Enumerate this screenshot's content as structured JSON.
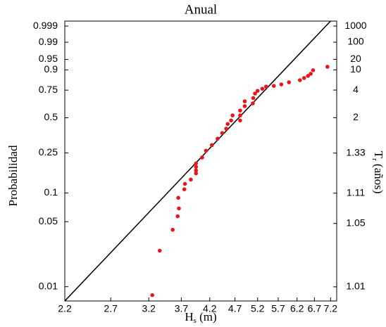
{
  "chart_data": {
    "type": "scatter",
    "title": "Anual",
    "xlabel": {
      "main": "H",
      "sub": "s",
      "rest": " (m)"
    },
    "ylabel": "Probabilidad",
    "y2label": {
      "main": "T",
      "sub": "r",
      "rest": " (años)"
    },
    "xscale": "log",
    "yscale": "weibull",
    "y2scale": "return-period",
    "xlim": [
      2.2,
      7.4
    ],
    "ylim": [
      0.007,
      0.9996
    ],
    "y2lim": [
      1.007,
      2500
    ],
    "xticks": [
      2.2,
      2.7,
      3.2,
      3.7,
      4.2,
      4.7,
      5.2,
      5.7,
      6.2,
      6.7,
      7.2
    ],
    "yticks": [
      0.01,
      0.05,
      0.1,
      0.25,
      0.5,
      0.75,
      0.9,
      0.95,
      0.99,
      0.999
    ],
    "y2ticks": [
      1.01,
      1.05,
      1.11,
      1.33,
      2,
      4,
      10,
      20,
      100,
      1000
    ],
    "grid": false,
    "series": [
      {
        "color": "#000000",
        "mode": "line",
        "x": [
          2.2,
          7.2
        ],
        "values": [
          0.007,
          0.9996
        ]
      },
      {
        "color": "#e8161b",
        "mode": "markers",
        "x": [
          3.25,
          3.36,
          3.56,
          3.64,
          3.66,
          3.65,
          3.75,
          3.76,
          3.86,
          3.95,
          3.95,
          3.95,
          3.95,
          4.06,
          4.13,
          4.24,
          4.35,
          4.44,
          4.52,
          4.55,
          4.62,
          4.65,
          4.81,
          4.81,
          4.81,
          4.91,
          4.91,
          5.09,
          5.1,
          5.14,
          5.2,
          5.31,
          5.4,
          5.59,
          5.78,
          5.98,
          6.28,
          6.4,
          6.51,
          6.59,
          6.66,
          7.1
        ],
        "values": [
          0.0081,
          0.0245,
          0.041,
          0.057,
          0.069,
          0.089,
          0.109,
          0.124,
          0.137,
          0.158,
          0.169,
          0.183,
          0.198,
          0.226,
          0.262,
          0.295,
          0.337,
          0.377,
          0.41,
          0.448,
          0.477,
          0.521,
          0.477,
          0.521,
          0.565,
          0.605,
          0.649,
          0.63,
          0.679,
          0.72,
          0.744,
          0.762,
          0.78,
          0.786,
          0.798,
          0.815,
          0.831,
          0.847,
          0.862,
          0.876,
          0.898,
          0.917
        ]
      }
    ]
  }
}
